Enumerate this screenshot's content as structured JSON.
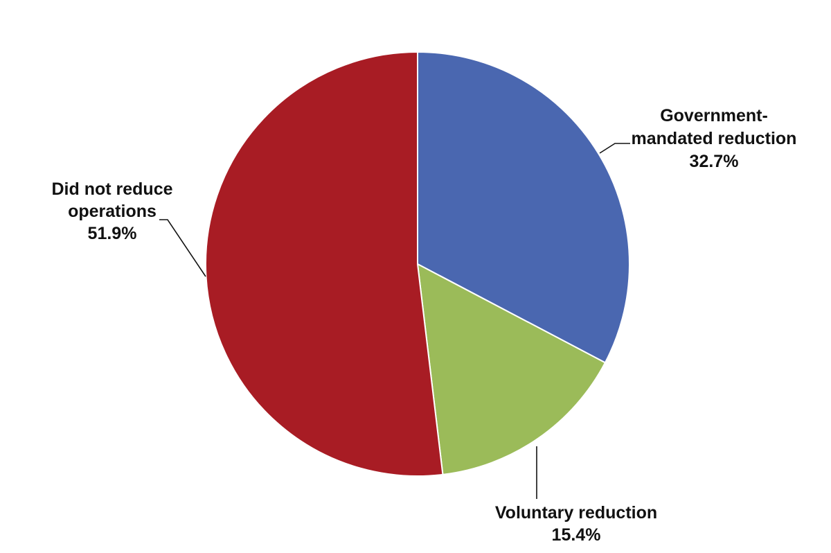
{
  "chart_data": {
    "type": "pie",
    "title": "",
    "start_angle_deg": 0,
    "direction": "clockwise",
    "slices": [
      {
        "name": "Government-mandated reduction",
        "label_lines": [
          "Government-",
          "mandated reduction"
        ],
        "value": 32.7,
        "value_label": "32.7%",
        "color": "#4A67B0"
      },
      {
        "name": "Voluntary reduction",
        "label_lines": [
          "Voluntary reduction"
        ],
        "value": 15.4,
        "value_label": "15.4%",
        "color": "#9BBB59"
      },
      {
        "name": "Did not reduce operations",
        "label_lines": [
          "Did not reduce",
          "operations"
        ],
        "value": 51.9,
        "value_label": "51.9%",
        "color": "#A81C24"
      }
    ]
  }
}
